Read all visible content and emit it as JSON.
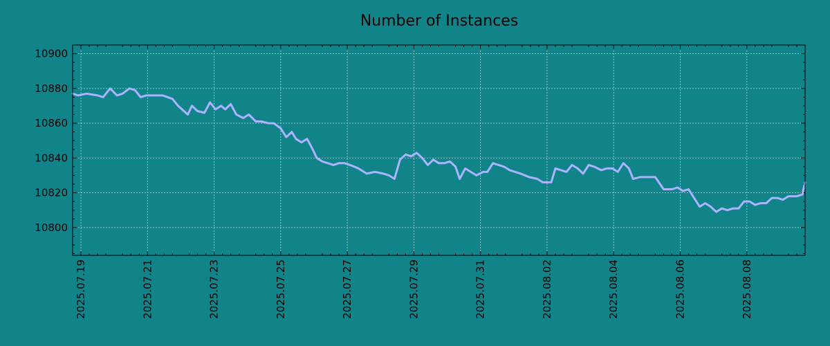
{
  "chart_data": {
    "type": "line",
    "title": "Number of Instances",
    "xlabel": "",
    "ylabel": "",
    "xlim": [
      "2025-07-18T18:00",
      "2025-08-09T18:00"
    ],
    "ylim": [
      10784,
      10905
    ],
    "y_ticks": [
      10800,
      10820,
      10840,
      10860,
      10880,
      10900
    ],
    "x_ticks": [
      "2025.07.19",
      "2025.07.21",
      "2025.07.23",
      "2025.07.25",
      "2025.07.27",
      "2025.07.29",
      "2025.07.31",
      "2025.08.02",
      "2025.08.04",
      "2025.08.06",
      "2025.08.08"
    ],
    "x_minor_ticks_per_day": 4,
    "grid": true,
    "line_color": "#aab4ff",
    "background_color": "#108489",
    "series": [
      {
        "x": [
          "2025-07-18T18:00",
          "2025-07-18T22:00",
          "2025-07-19T04:00",
          "2025-07-19T12:00",
          "2025-07-19T16:00",
          "2025-07-19T21:00",
          "2025-07-20T02:00",
          "2025-07-20T06:00",
          "2025-07-20T11:00",
          "2025-07-20T15:00",
          "2025-07-20T19:00",
          "2025-07-20T23:00",
          "2025-07-21T06:00",
          "2025-07-21T11:00",
          "2025-07-21T18:00",
          "2025-07-21T22:00",
          "2025-07-22T05:00",
          "2025-07-22T08:00",
          "2025-07-22T12:00",
          "2025-07-22T17:00",
          "2025-07-22T21:00",
          "2025-07-23T01:00",
          "2025-07-23T05:00",
          "2025-07-23T08:00",
          "2025-07-23T12:00",
          "2025-07-23T16:00",
          "2025-07-23T21:00",
          "2025-07-24T01:00",
          "2025-07-24T06:00",
          "2025-07-24T10:00",
          "2025-07-24T15:00",
          "2025-07-24T19:00",
          "2025-07-25T00:00",
          "2025-07-25T04:00",
          "2025-07-25T08:00",
          "2025-07-25T11:00",
          "2025-07-25T15:00",
          "2025-07-25T19:00",
          "2025-07-25T23:00",
          "2025-07-26T02:00",
          "2025-07-26T06:00",
          "2025-07-26T10:00",
          "2025-07-26T14:00",
          "2025-07-26T18:00",
          "2025-07-26T22:00",
          "2025-07-27T02:00",
          "2025-07-27T08:00",
          "2025-07-27T14:00",
          "2025-07-27T20:00",
          "2025-07-28T02:00",
          "2025-07-28T06:00",
          "2025-07-28T10:00",
          "2025-07-28T14:00",
          "2025-07-28T18:00",
          "2025-07-28T22:00",
          "2025-07-29T02:00",
          "2025-07-29T06:00",
          "2025-07-29T10:00",
          "2025-07-29T14:00",
          "2025-07-29T18:00",
          "2025-07-29T22:00",
          "2025-07-30T02:00",
          "2025-07-30T06:00",
          "2025-07-30T09:00",
          "2025-07-30T13:00",
          "2025-07-30T17:00",
          "2025-07-30T21:00",
          "2025-07-31T02:00",
          "2025-07-31T05:00",
          "2025-07-31T09:00",
          "2025-07-31T13:00",
          "2025-07-31T17:00",
          "2025-07-31T21:00",
          "2025-08-01T01:00",
          "2025-08-01T05:00",
          "2025-08-01T11:00",
          "2025-08-01T17:00",
          "2025-08-01T21:00",
          "2025-08-02T03:00",
          "2025-08-02T06:00",
          "2025-08-02T10:00",
          "2025-08-02T14:00",
          "2025-08-02T18:00",
          "2025-08-02T22:00",
          "2025-08-03T02:00",
          "2025-08-03T06:00",
          "2025-08-03T10:00",
          "2025-08-03T15:00",
          "2025-08-03T19:00",
          "2025-08-03T23:00",
          "2025-08-04T03:00",
          "2025-08-04T07:00",
          "2025-08-04T11:00",
          "2025-08-04T14:00",
          "2025-08-04T19:00",
          "2025-08-05T00:00",
          "2025-08-05T06:00",
          "2025-08-05T12:00",
          "2025-08-05T18:00",
          "2025-08-05T22:00",
          "2025-08-06T02:00",
          "2025-08-06T06:00",
          "2025-08-06T10:00",
          "2025-08-06T14:00",
          "2025-08-06T18:00",
          "2025-08-06T22:00",
          "2025-08-07T02:00",
          "2025-08-07T06:00",
          "2025-08-07T10:00",
          "2025-08-07T14:00",
          "2025-08-07T18:00",
          "2025-08-07T22:00",
          "2025-08-08T02:00",
          "2025-08-08T06:00",
          "2025-08-08T10:00",
          "2025-08-08T14:00",
          "2025-08-08T18:00",
          "2025-08-08T22:00",
          "2025-08-09T02:00",
          "2025-08-09T06:00",
          "2025-08-09T12:00",
          "2025-08-09T16:00",
          "2025-08-09T18:00"
        ],
        "y": [
          10877,
          10876,
          10877,
          10876,
          10875,
          10880,
          10876,
          10877,
          10880,
          10879,
          10875,
          10876,
          10876,
          10876,
          10874,
          10870,
          10865,
          10870,
          10867,
          10866,
          10872,
          10868,
          10870,
          10868,
          10871,
          10865,
          10863,
          10865,
          10861,
          10861,
          10860,
          10860,
          10857,
          10852,
          10855,
          10851,
          10849,
          10851,
          10845,
          10840,
          10838,
          10837,
          10836,
          10837,
          10837,
          10836,
          10834,
          10831,
          10832,
          10831,
          10830,
          10828,
          10839,
          10842,
          10841,
          10843,
          10840,
          10836,
          10839,
          10837,
          10837,
          10838,
          10835,
          10828,
          10834,
          10832,
          10830,
          10832,
          10832,
          10837,
          10836,
          10835,
          10833,
          10832,
          10831,
          10829,
          10828,
          10826,
          10826,
          10834,
          10833,
          10832,
          10836,
          10834,
          10831,
          10836,
          10835,
          10833,
          10834,
          10834,
          10832,
          10837,
          10834,
          10828,
          10829,
          10829,
          10829,
          10822,
          10822,
          10823,
          10821,
          10822,
          10817,
          10812,
          10814,
          10812,
          10809,
          10811,
          10810,
          10811,
          10811,
          10815,
          10815,
          10813,
          10814,
          10814,
          10817,
          10817,
          10816,
          10818,
          10818,
          10819,
          10826
        ]
      }
    ]
  }
}
